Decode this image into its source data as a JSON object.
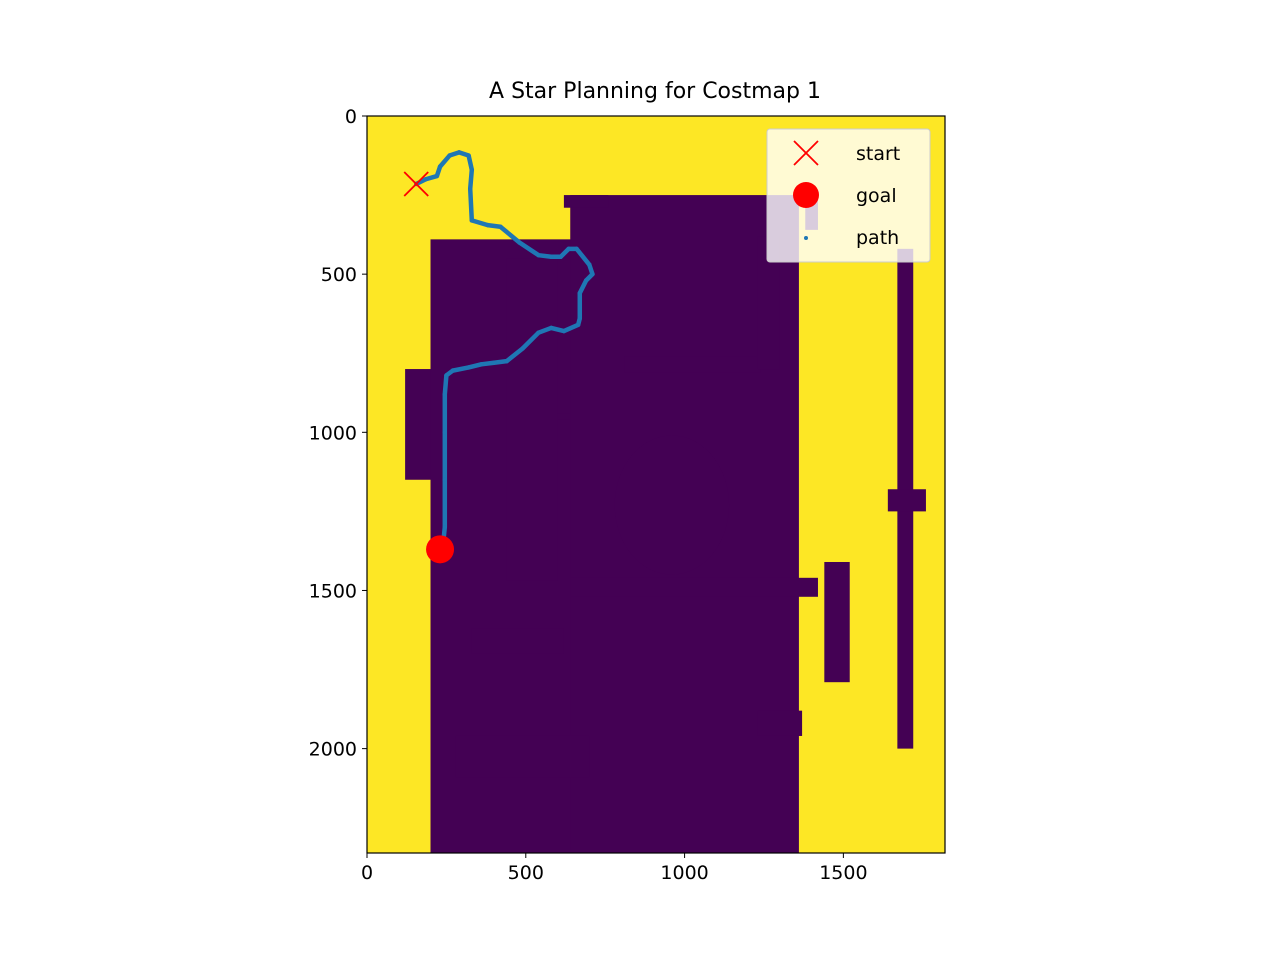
{
  "chart_data": {
    "type": "scatter",
    "title": "A Star Planning for Costmap 1",
    "xlabel": "",
    "ylabel": "",
    "xlim": [
      0,
      1820
    ],
    "ylim": [
      2330,
      0
    ],
    "y_inverted": true,
    "grid": false,
    "x_ticks": [
      {
        "value": 0,
        "label": "0"
      },
      {
        "value": 500,
        "label": "500"
      },
      {
        "value": 1000,
        "label": "1000"
      },
      {
        "value": 1500,
        "label": "1500"
      }
    ],
    "y_ticks": [
      {
        "value": 0,
        "label": "0"
      },
      {
        "value": 500,
        "label": "500"
      },
      {
        "value": 1000,
        "label": "1000"
      },
      {
        "value": 1500,
        "label": "1500"
      },
      {
        "value": 2000,
        "label": "2000"
      }
    ],
    "background": {
      "kind": "costmap image",
      "free_color": "#fde725",
      "obstacle_color": "#440154"
    },
    "legend": {
      "position": "top-right",
      "entries": [
        {
          "label": "start",
          "marker": "x",
          "color": "#ff0000"
        },
        {
          "label": "goal",
          "marker": "circle",
          "color": "#ff0000"
        },
        {
          "label": "path",
          "marker": "dot",
          "color": "#1f77b4"
        }
      ]
    },
    "series": [
      {
        "name": "start",
        "marker": "x",
        "color": "#ff0000",
        "points": [
          [
            155,
            215
          ]
        ]
      },
      {
        "name": "goal",
        "marker": "circle",
        "color": "#ff0000",
        "points": [
          [
            230,
            1370
          ]
        ]
      },
      {
        "name": "path",
        "marker": "dot",
        "color": "#1f77b4",
        "points": [
          [
            155,
            215
          ],
          [
            185,
            200
          ],
          [
            220,
            190
          ],
          [
            230,
            160
          ],
          [
            260,
            125
          ],
          [
            290,
            115
          ],
          [
            320,
            125
          ],
          [
            330,
            170
          ],
          [
            325,
            230
          ],
          [
            330,
            330
          ],
          [
            380,
            345
          ],
          [
            420,
            350
          ],
          [
            480,
            400
          ],
          [
            540,
            440
          ],
          [
            580,
            445
          ],
          [
            610,
            445
          ],
          [
            635,
            420
          ],
          [
            660,
            420
          ],
          [
            700,
            470
          ],
          [
            710,
            500
          ],
          [
            690,
            520
          ],
          [
            670,
            560
          ],
          [
            670,
            640
          ],
          [
            665,
            660
          ],
          [
            620,
            680
          ],
          [
            580,
            670
          ],
          [
            540,
            685
          ],
          [
            490,
            735
          ],
          [
            440,
            775
          ],
          [
            400,
            780
          ],
          [
            360,
            785
          ],
          [
            320,
            795
          ],
          [
            270,
            805
          ],
          [
            250,
            820
          ],
          [
            245,
            880
          ],
          [
            245,
            1000
          ],
          [
            245,
            1150
          ],
          [
            245,
            1300
          ],
          [
            240,
            1350
          ]
        ]
      }
    ]
  }
}
